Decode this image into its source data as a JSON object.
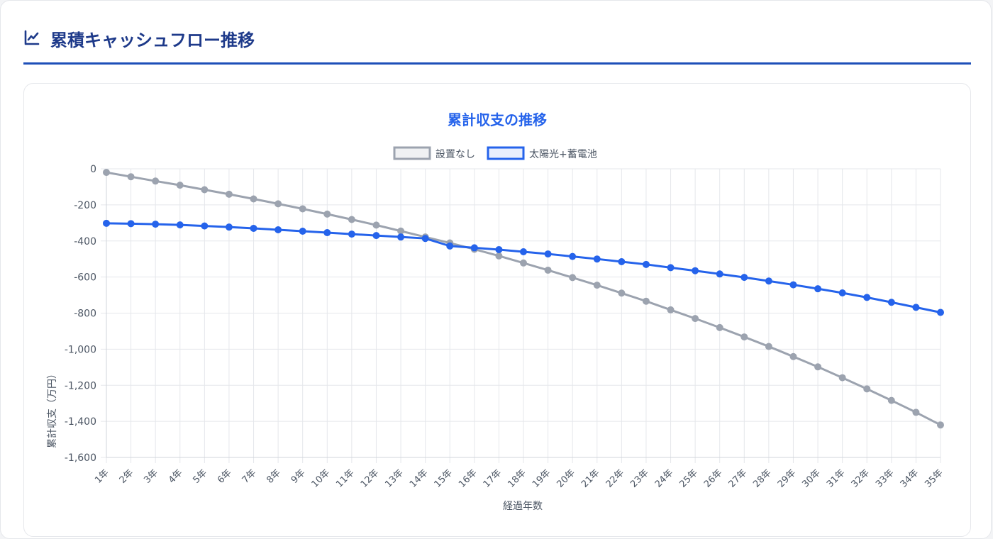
{
  "section": {
    "title": "累積キャッシュフロー推移",
    "icon": "line-chart-icon"
  },
  "colors": {
    "accent": "#1e4fb8",
    "title_text": "#1e3a8a",
    "chart_title": "#2563eb",
    "series_none": "#9ca3af",
    "series_solar": "#2563eb",
    "grid": "#e5e7eb",
    "tick_text": "#4b5563"
  },
  "chart_data": {
    "type": "line",
    "title": "累計収支の推移",
    "xlabel": "経過年数",
    "ylabel": "累計収支（万円）",
    "ylim": [
      -1600,
      0
    ],
    "yticks": [
      0,
      -200,
      -400,
      -600,
      -800,
      -1000,
      -1200,
      -1400,
      -1600
    ],
    "ytick_labels": [
      "0",
      "-200",
      "-400",
      "-600",
      "-800",
      "-1,000",
      "-1,200",
      "-1,400",
      "-1,600"
    ],
    "grid": true,
    "legend_position": "top-center",
    "categories": [
      "1年",
      "2年",
      "3年",
      "4年",
      "5年",
      "6年",
      "7年",
      "8年",
      "9年",
      "10年",
      "11年",
      "12年",
      "13年",
      "14年",
      "15年",
      "16年",
      "17年",
      "18年",
      "19年",
      "20年",
      "21年",
      "22年",
      "23年",
      "24年",
      "25年",
      "26年",
      "27年",
      "28年",
      "29年",
      "30年",
      "31年",
      "32年",
      "33年",
      "34年",
      "35年"
    ],
    "series": [
      {
        "name": "設置なし",
        "color": "#9ca3af",
        "values": [
          -20,
          -44,
          -68,
          -91,
          -116,
          -141,
          -167,
          -194,
          -222,
          -251,
          -281,
          -312,
          -345,
          -378,
          -411,
          -446,
          -483,
          -522,
          -562,
          -603,
          -645,
          -689,
          -734,
          -782,
          -830,
          -880,
          -932,
          -985,
          -1041,
          -1098,
          -1158,
          -1220,
          -1284,
          -1350,
          -1420
        ]
      },
      {
        "name": "太陽光+蓄電池",
        "color": "#2563eb",
        "values": [
          -302,
          -304,
          -307,
          -311,
          -317,
          -323,
          -330,
          -338,
          -346,
          -354,
          -362,
          -370,
          -378,
          -386,
          -428,
          -438,
          -448,
          -460,
          -472,
          -486,
          -500,
          -515,
          -530,
          -548,
          -565,
          -583,
          -602,
          -622,
          -643,
          -665,
          -688,
          -713,
          -740,
          -768,
          -796
        ]
      }
    ]
  }
}
